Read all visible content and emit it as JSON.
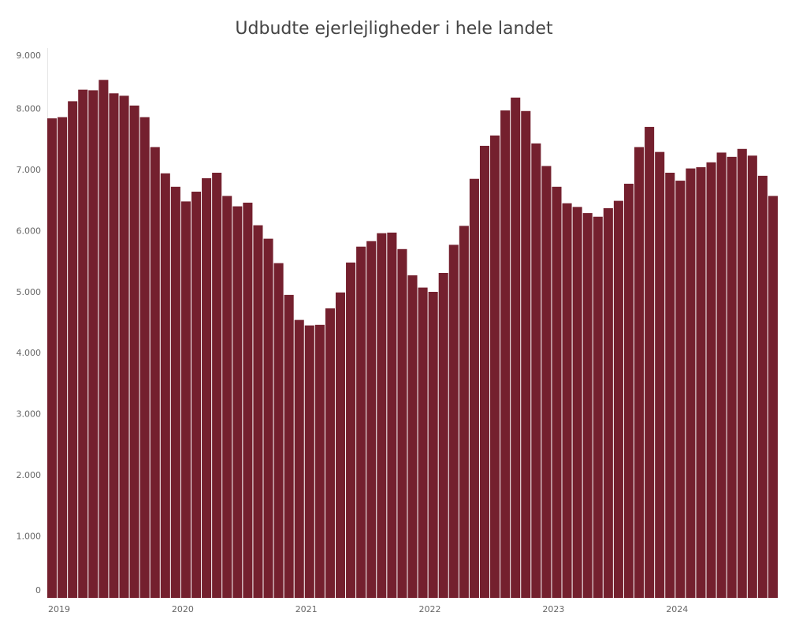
{
  "chart_data": {
    "type": "bar",
    "title": "Udbudte ejerlejligheder i hele landet",
    "categories": [
      "2019",
      null,
      null,
      null,
      null,
      null,
      null,
      null,
      null,
      null,
      null,
      null,
      "2020",
      null,
      null,
      null,
      null,
      null,
      null,
      null,
      null,
      null,
      null,
      null,
      "2021",
      null,
      null,
      null,
      null,
      null,
      null,
      null,
      null,
      null,
      null,
      null,
      "2022",
      null,
      null,
      null,
      null,
      null,
      null,
      null,
      null,
      null,
      null,
      null,
      "2023",
      null,
      null,
      null,
      null,
      null,
      null,
      null,
      null,
      null,
      null,
      null,
      "2024",
      null,
      null,
      null,
      null,
      null,
      null,
      null,
      null,
      null,
      null
    ],
    "values": [
      7850,
      7870,
      8130,
      8320,
      8310,
      8480,
      8260,
      8220,
      8060,
      7870,
      7380,
      6950,
      6730,
      6490,
      6650,
      6870,
      6960,
      6580,
      6410,
      6470,
      6100,
      5880,
      5480,
      4960,
      4550,
      4460,
      4470,
      4740,
      5000,
      5490,
      5750,
      5840,
      5970,
      5980,
      5710,
      5280,
      5080,
      5010,
      5320,
      5780,
      6090,
      6860,
      7400,
      7570,
      7980,
      8190,
      7970,
      7440,
      7070,
      6730,
      6460,
      6400,
      6300,
      6240,
      6380,
      6500,
      6780,
      7380,
      7710,
      7300,
      6960,
      6830,
      7030,
      7050,
      7130,
      7290,
      7220,
      7350,
      7240,
      6910,
      6580
    ],
    "color": "#74202e",
    "ylim": [
      0,
      9000
    ],
    "yticks": [
      0,
      {
        "value": 1000,
        "label": "1.000"
      },
      {
        "value": 2000,
        "label": "2.000"
      },
      {
        "value": 3000,
        "label": "3.000"
      },
      {
        "value": 4000,
        "label": "4.000"
      },
      {
        "value": 5000,
        "label": "5.000"
      },
      {
        "value": 6000,
        "label": "6.000"
      },
      {
        "value": 7000,
        "label": "7.000"
      },
      {
        "value": 8000,
        "label": "8.000"
      },
      {
        "value": 9000,
        "label": "9.000"
      }
    ],
    "grid": false
  }
}
